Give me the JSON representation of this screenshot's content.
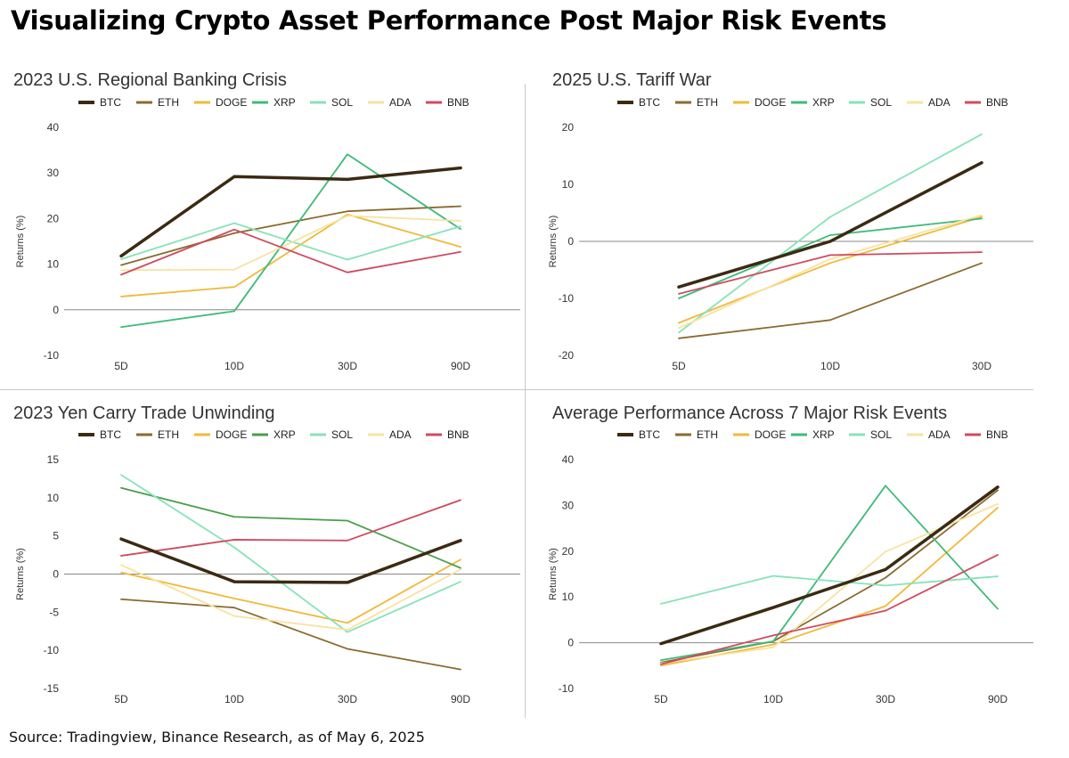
{
  "page": {
    "title": "Visualizing Crypto Asset Performance Post Major Risk Events",
    "source": "Source: Tradingview, Binance Research, as of May 6, 2025"
  },
  "colors": {
    "BTC": "#3b2a12",
    "ETH": "#8a6a2e",
    "DOGE": "#f0b93a",
    "XRP": "#3dbb7a",
    "XRP_alt": "#4a9e4a",
    "SOL": "#86e3b8",
    "ADA": "#f7e3a0",
    "BNB": "#cf4a5f"
  },
  "chart_data": [
    {
      "type": "line",
      "title": "2023 U.S. Regional Banking Crisis",
      "ylabel": "Returns (%)",
      "categories": [
        "5D",
        "10D",
        "30D",
        "90D"
      ],
      "ylim": [
        -10,
        40
      ],
      "yticks": [
        -10,
        0,
        10,
        20,
        30,
        40
      ],
      "legend": "top",
      "series": [
        {
          "name": "BTC",
          "values": [
            11.8,
            29.2,
            28.6,
            31.1
          ]
        },
        {
          "name": "ETH",
          "values": [
            9.8,
            16.8,
            21.6,
            22.7
          ]
        },
        {
          "name": "DOGE",
          "values": [
            2.9,
            5.0,
            20.9,
            13.8
          ]
        },
        {
          "name": "XRP",
          "values": [
            -3.8,
            -0.3,
            34.1,
            17.7
          ]
        },
        {
          "name": "SOL",
          "values": [
            11.1,
            19.0,
            11.0,
            18.3
          ]
        },
        {
          "name": "ADA",
          "values": [
            8.7,
            8.8,
            20.6,
            19.5
          ]
        },
        {
          "name": "BNB",
          "values": [
            7.7,
            17.6,
            8.2,
            12.7
          ]
        }
      ]
    },
    {
      "type": "line",
      "title": "2025 U.S. Tariff War",
      "ylabel": "Returns (%)",
      "categories": [
        "5D",
        "10D",
        "30D"
      ],
      "ylim": [
        -20,
        20
      ],
      "yticks": [
        -20,
        -10,
        0,
        10,
        20
      ],
      "legend": "top",
      "series": [
        {
          "name": "BTC",
          "values": [
            -8.0,
            0.0,
            13.8
          ]
        },
        {
          "name": "ETH",
          "values": [
            -17.0,
            -13.8,
            -3.8
          ]
        },
        {
          "name": "DOGE",
          "values": [
            -14.3,
            -3.8,
            4.3
          ]
        },
        {
          "name": "XRP",
          "values": [
            -10.0,
            1.1,
            4.0
          ]
        },
        {
          "name": "SOL",
          "values": [
            -16.0,
            4.3,
            18.8
          ]
        },
        {
          "name": "ADA",
          "values": [
            -15.2,
            -3.1,
            4.6
          ]
        },
        {
          "name": "BNB",
          "values": [
            -9.2,
            -2.4,
            -1.9
          ]
        }
      ]
    },
    {
      "type": "line",
      "title": "2023 Yen Carry Trade Unwinding",
      "ylabel": "Returns (%)",
      "categories": [
        "5D",
        "10D",
        "30D",
        "90D"
      ],
      "ylim": [
        -15,
        15
      ],
      "yticks": [
        -15,
        -10,
        -5,
        0,
        5,
        10,
        15
      ],
      "legend": "top",
      "series": [
        {
          "name": "BTC",
          "values": [
            4.6,
            -1.0,
            -1.1,
            4.4
          ]
        },
        {
          "name": "ETH",
          "values": [
            -3.3,
            -4.4,
            -9.8,
            -12.5
          ]
        },
        {
          "name": "DOGE",
          "values": [
            0.2,
            -3.2,
            -6.4,
            1.9
          ]
        },
        {
          "name": "XRP",
          "values": [
            11.3,
            7.5,
            7.0,
            0.8
          ]
        },
        {
          "name": "SOL",
          "values": [
            13.0,
            3.5,
            -7.6,
            -1.0
          ]
        },
        {
          "name": "ADA",
          "values": [
            1.2,
            -5.5,
            -7.3,
            0.6
          ]
        },
        {
          "name": "BNB",
          "values": [
            2.4,
            4.5,
            4.4,
            9.7
          ]
        }
      ]
    },
    {
      "type": "line",
      "title": "Average Performance Across 7 Major Risk Events",
      "ylabel": "Returns (%)",
      "categories": [
        "5D",
        "10D",
        "30D",
        "90D"
      ],
      "ylim": [
        -10,
        40
      ],
      "yticks": [
        -10,
        0,
        10,
        20,
        30,
        40
      ],
      "legend": "top",
      "series": [
        {
          "name": "BTC",
          "values": [
            -0.2,
            7.7,
            16.0,
            34.0
          ]
        },
        {
          "name": "ETH",
          "values": [
            -4.3,
            0.3,
            14.2,
            33.3
          ]
        },
        {
          "name": "DOGE",
          "values": [
            -5.0,
            -0.4,
            8.0,
            29.5
          ]
        },
        {
          "name": "XRP",
          "values": [
            -3.8,
            0.3,
            34.3,
            7.4
          ]
        },
        {
          "name": "SOL",
          "values": [
            8.5,
            14.6,
            12.5,
            14.5
          ]
        },
        {
          "name": "ADA",
          "values": [
            -4.5,
            -1.0,
            19.9,
            30.3
          ]
        },
        {
          "name": "BNB",
          "values": [
            -4.7,
            1.6,
            7.0,
            19.2
          ]
        }
      ]
    }
  ]
}
